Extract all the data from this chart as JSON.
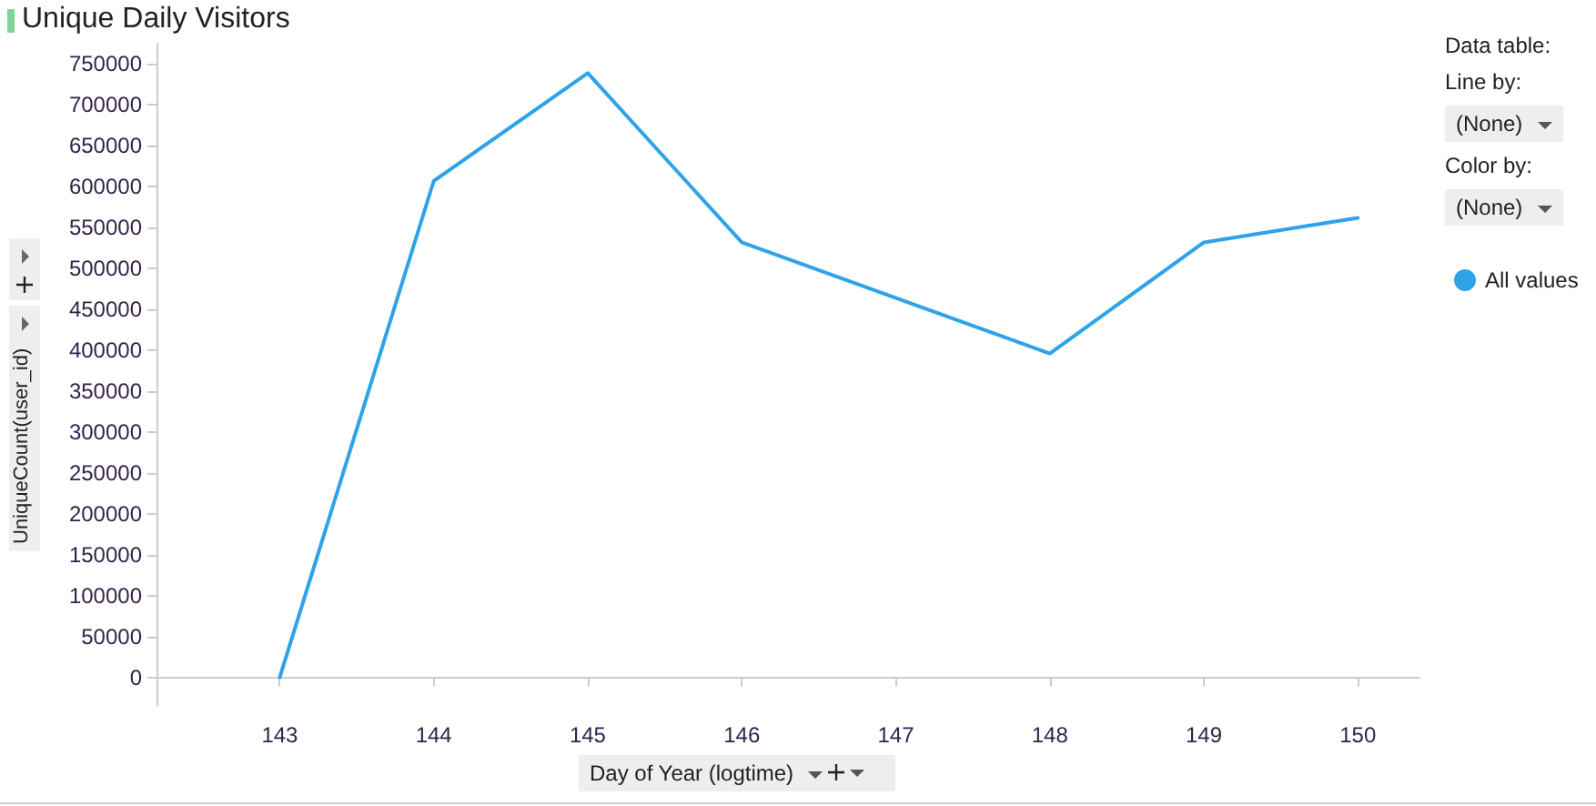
{
  "chart_data": {
    "type": "line",
    "title": "Unique Daily Visitors",
    "xlabel": "Day of Year (logtime)",
    "ylabel": "UniqueCount(user_id)",
    "x": [
      143,
      144,
      145,
      146,
      148,
      149,
      150
    ],
    "series": [
      {
        "name": "All values",
        "color": "#2fa3e8",
        "values": [
          0,
          607000,
          739000,
          532000,
          396000,
          532000,
          562000
        ]
      }
    ],
    "xlim": [
      142.2,
      150.4
    ],
    "xticks": [
      143,
      144,
      145,
      146,
      147,
      148,
      149,
      150
    ],
    "ylim": [
      -35000,
      775000
    ],
    "yticks": [
      0,
      50000,
      100000,
      150000,
      200000,
      250000,
      300000,
      350000,
      400000,
      450000,
      500000,
      550000,
      600000,
      650000,
      700000,
      750000
    ],
    "grid": false,
    "legend": "right",
    "marker": "none",
    "line_style": "solid",
    "annotations": [
      "Data table:",
      "Line by:",
      "(None)",
      "Color by:",
      "(None)"
    ]
  }
}
